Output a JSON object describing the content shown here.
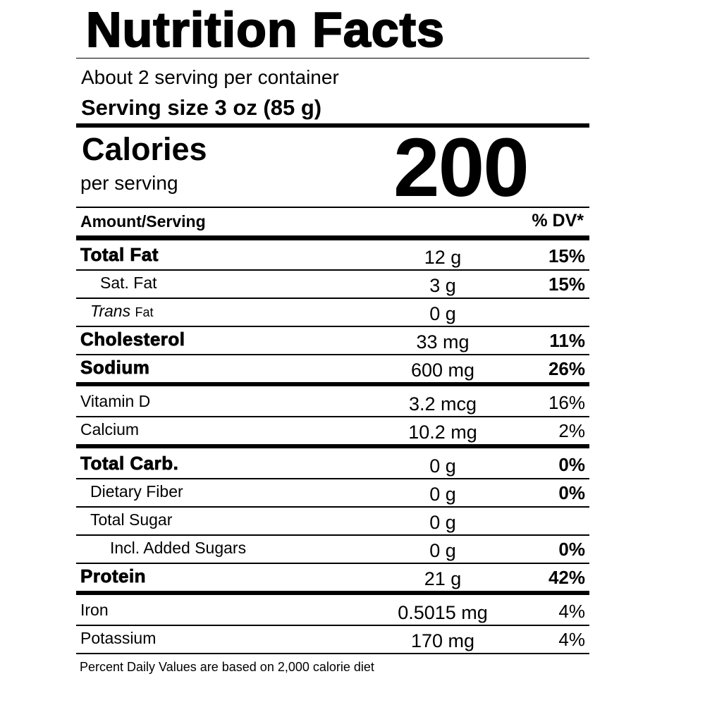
{
  "title": "Nutrition Facts",
  "servings_per_container": "About 2 serving per container",
  "serving_size": "Serving size 3 oz (85 g)",
  "calories": {
    "label": "Calories",
    "sublabel": "per serving",
    "value": "200"
  },
  "header": {
    "amount": "Amount/Serving",
    "dv": "% DV*"
  },
  "nutrients": [
    {
      "name": "Total Fat",
      "amount": "12 g",
      "dv": "15%",
      "bold": true
    },
    {
      "name": "Sat. Fat",
      "amount": "3 g",
      "dv": "15%",
      "bold": false
    },
    {
      "name_italic": "Trans",
      "name": "Fat",
      "amount": "0 g",
      "dv": "",
      "bold": false
    },
    {
      "name": "Cholesterol",
      "amount": "33 mg",
      "dv": "11%",
      "bold": true
    },
    {
      "name": "Sodium",
      "amount": "600 mg",
      "dv": "26%",
      "bold": true
    },
    {
      "name": "Vitamin D",
      "amount": "3.2 mcg",
      "dv": "16%",
      "bold": false
    },
    {
      "name": "Calcium",
      "amount": "10.2 mg",
      "dv": "2%",
      "bold": false
    },
    {
      "name": "Total Carb.",
      "amount": "0 g",
      "dv": "0%",
      "bold": true
    },
    {
      "name": "Dietary Fiber",
      "amount": "0 g",
      "dv": "0%",
      "bold": false
    },
    {
      "name": "Total Sugar",
      "amount": "0 g",
      "dv": "",
      "bold": false
    },
    {
      "name": "Incl. Added Sugars",
      "amount": "0 g",
      "dv": "0%",
      "bold": false
    },
    {
      "name": "Protein",
      "amount": "21 g",
      "dv": "42%",
      "bold": true
    },
    {
      "name": "Iron",
      "amount": "0.5015 mg",
      "dv": "4%",
      "bold": false
    },
    {
      "name": "Potassium",
      "amount": "170 mg",
      "dv": "4%",
      "bold": false
    }
  ],
  "footnote": "Percent Daily Values are based on 2,000 calorie diet"
}
